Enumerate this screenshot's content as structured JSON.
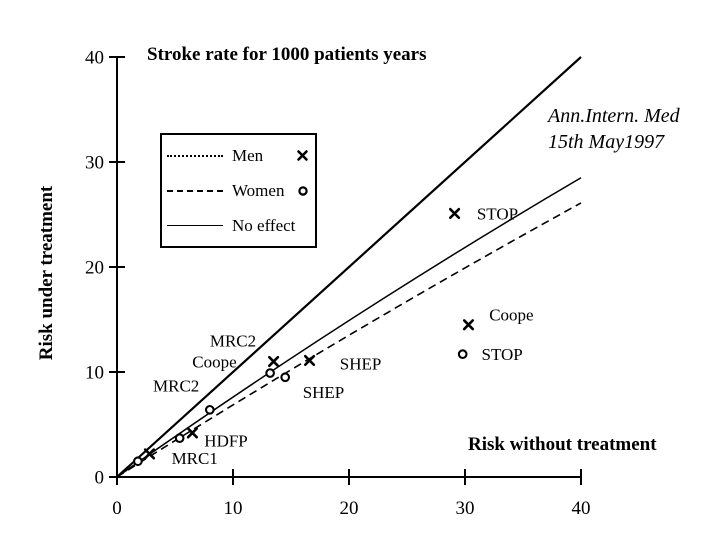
{
  "colors": {
    "foreground": "#000000",
    "background": "#ffffff"
  },
  "citation": {
    "line1": "Ann.Intern. Med",
    "line2": "15th May1997"
  },
  "legend": {
    "items": [
      {
        "label": "Men",
        "line_style": "dotted",
        "marker": "x"
      },
      {
        "label": "Women",
        "line_style": "dashed",
        "marker": "o"
      },
      {
        "label": "No effect",
        "line_style": "solid",
        "marker": ""
      }
    ]
  },
  "chart_data": {
    "type": "scatter",
    "title": "Stroke rate for 1000 patients years",
    "xlabel": "Risk without treatment",
    "ylabel": "Risk under treatment",
    "xlim": [
      0,
      40
    ],
    "ylim": [
      0,
      40
    ],
    "xticks": [
      0,
      10,
      20,
      30,
      40
    ],
    "yticks": [
      0,
      10,
      20,
      30,
      40
    ],
    "grid": false,
    "legend_position": "upper-left-inside",
    "series": [
      {
        "name": "Men",
        "marker": "x",
        "trend_render": "solid_thin",
        "legend_line_style": "dotted",
        "points": [
          {
            "label": "MRC1",
            "x": 2.8,
            "y": 2.2
          },
          {
            "label": "HDFP",
            "x": 6.5,
            "y": 4.2
          },
          {
            "label": "MRC2",
            "x": 13.5,
            "y": 11.0
          },
          {
            "label": "SHEP",
            "x": 16.6,
            "y": 11.1
          },
          {
            "label": "STOP",
            "x": 29.1,
            "y": 25.1
          },
          {
            "label": "Coope",
            "x": 30.3,
            "y": 14.5
          }
        ],
        "trend": [
          [
            0,
            0
          ],
          [
            20,
            14.9
          ],
          [
            40,
            28.5
          ]
        ]
      },
      {
        "name": "Women",
        "marker": "o",
        "trend_render": "dashed",
        "legend_line_style": "dashed",
        "points": [
          {
            "label": "MRC1",
            "x": 1.8,
            "y": 1.5
          },
          {
            "label": "HDFP",
            "x": 5.4,
            "y": 3.7
          },
          {
            "label": "MRC2",
            "x": 8.0,
            "y": 6.4
          },
          {
            "label": "Coope",
            "x": 13.2,
            "y": 9.9
          },
          {
            "label": "SHEP",
            "x": 14.5,
            "y": 9.5
          },
          {
            "label": "STOP",
            "x": 29.8,
            "y": 11.7
          }
        ],
        "trend": [
          [
            0,
            0
          ],
          [
            20,
            13.5
          ],
          [
            40,
            26.1
          ]
        ]
      },
      {
        "name": "No effect",
        "marker": "none",
        "trend_render": "solid",
        "legend_line_style": "solid",
        "points": [],
        "trend": [
          [
            0,
            0
          ],
          [
            40,
            40
          ]
        ]
      }
    ],
    "annotations": [
      {
        "text": "STOP",
        "series": "Men",
        "x": 32.8,
        "y": 25.1
      },
      {
        "text": "Coope",
        "series": "Men",
        "x": 34.0,
        "y": 15.5
      },
      {
        "text": "STOP",
        "series": "Women",
        "x": 33.2,
        "y": 11.7
      },
      {
        "text": "MRC2",
        "series": "Men",
        "x": 10.0,
        "y": 13.0
      },
      {
        "text": "Coope",
        "series": "Women",
        "x": 8.4,
        "y": 11.0
      },
      {
        "text": "MRC2",
        "series": "Women",
        "x": 5.1,
        "y": 8.7
      },
      {
        "text": "SHEP",
        "series": "Men",
        "x": 21.0,
        "y": 10.8
      },
      {
        "text": "SHEP",
        "series": "Women",
        "x": 17.8,
        "y": 8.1
      },
      {
        "text": "HDFP",
        "series": "",
        "x": 9.4,
        "y": 3.5
      },
      {
        "text": "MRC1",
        "series": "",
        "x": 6.7,
        "y": 1.8
      }
    ]
  }
}
